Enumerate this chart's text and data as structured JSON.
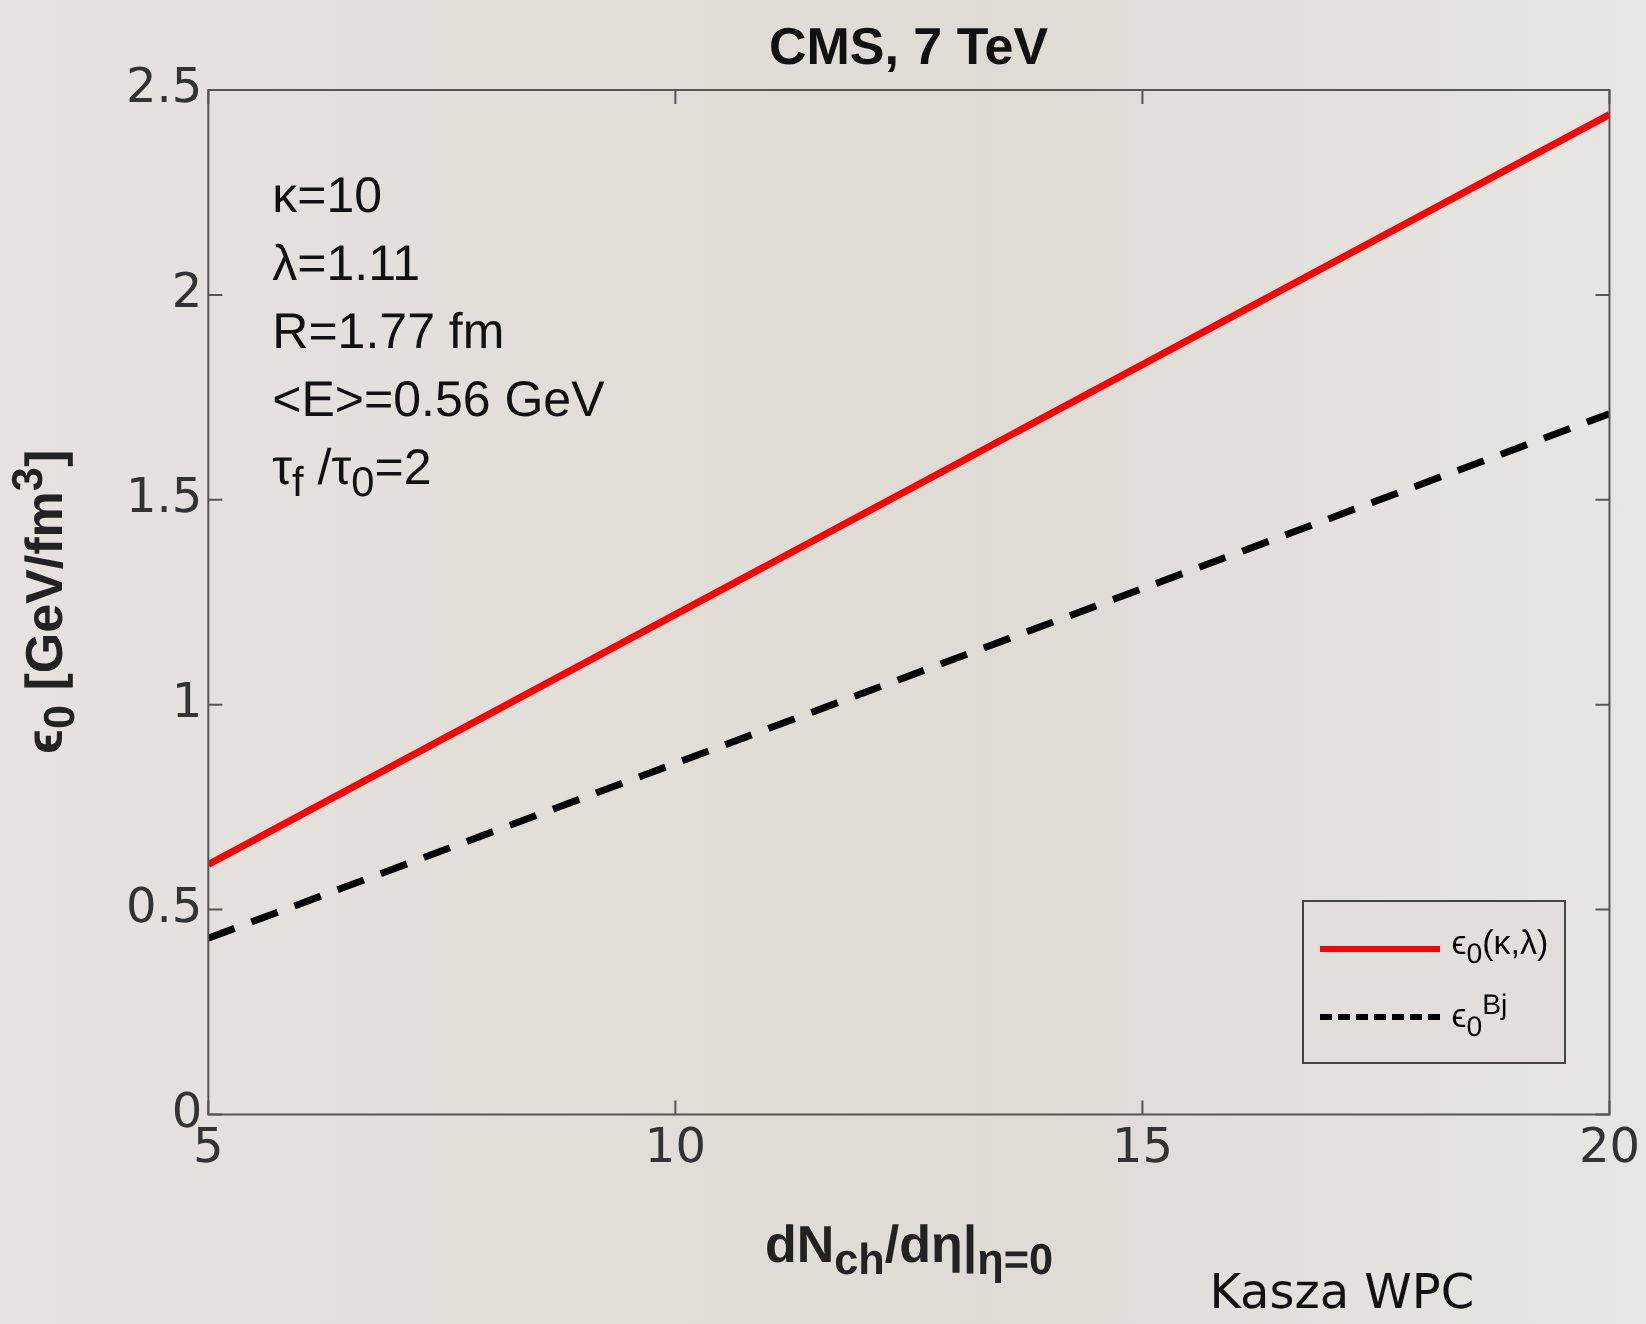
{
  "chart_data": {
    "type": "line",
    "title": "CMS, 7 TeV",
    "xlabel": "dN$_{ch}$/dη|$_{η=0}$",
    "ylabel": "ϵ$_{0}$ [GeV/fm$^{3}$]",
    "x": [
      5,
      20
    ],
    "series": [
      {
        "name": "ϵ$_{0}$(κ,λ)",
        "color": "#ff0000",
        "values": [
          0.61,
          2.44
        ],
        "line_style": "solid"
      },
      {
        "name": "ϵ$_{0}$$^{Bj}$",
        "color": "#000000",
        "values": [
          0.43,
          1.71
        ],
        "line_style": "dashed"
      }
    ],
    "xlim": [
      5,
      20
    ],
    "xticks": [
      5,
      10,
      15,
      20
    ],
    "ylim": [
      0,
      2.5
    ],
    "yticks": [
      0,
      0.5,
      1,
      1.5,
      2,
      2.5
    ],
    "grid": false,
    "legend": "bottom right",
    "marker": "none",
    "annotations": [
      "κ=10",
      "λ=1.11",
      "R=1.77 fm",
      "<E>=0.56 GeV",
      "τ$_{f}$ /τ$_{0}$=2",
      "Kasza WPC"
    ]
  }
}
